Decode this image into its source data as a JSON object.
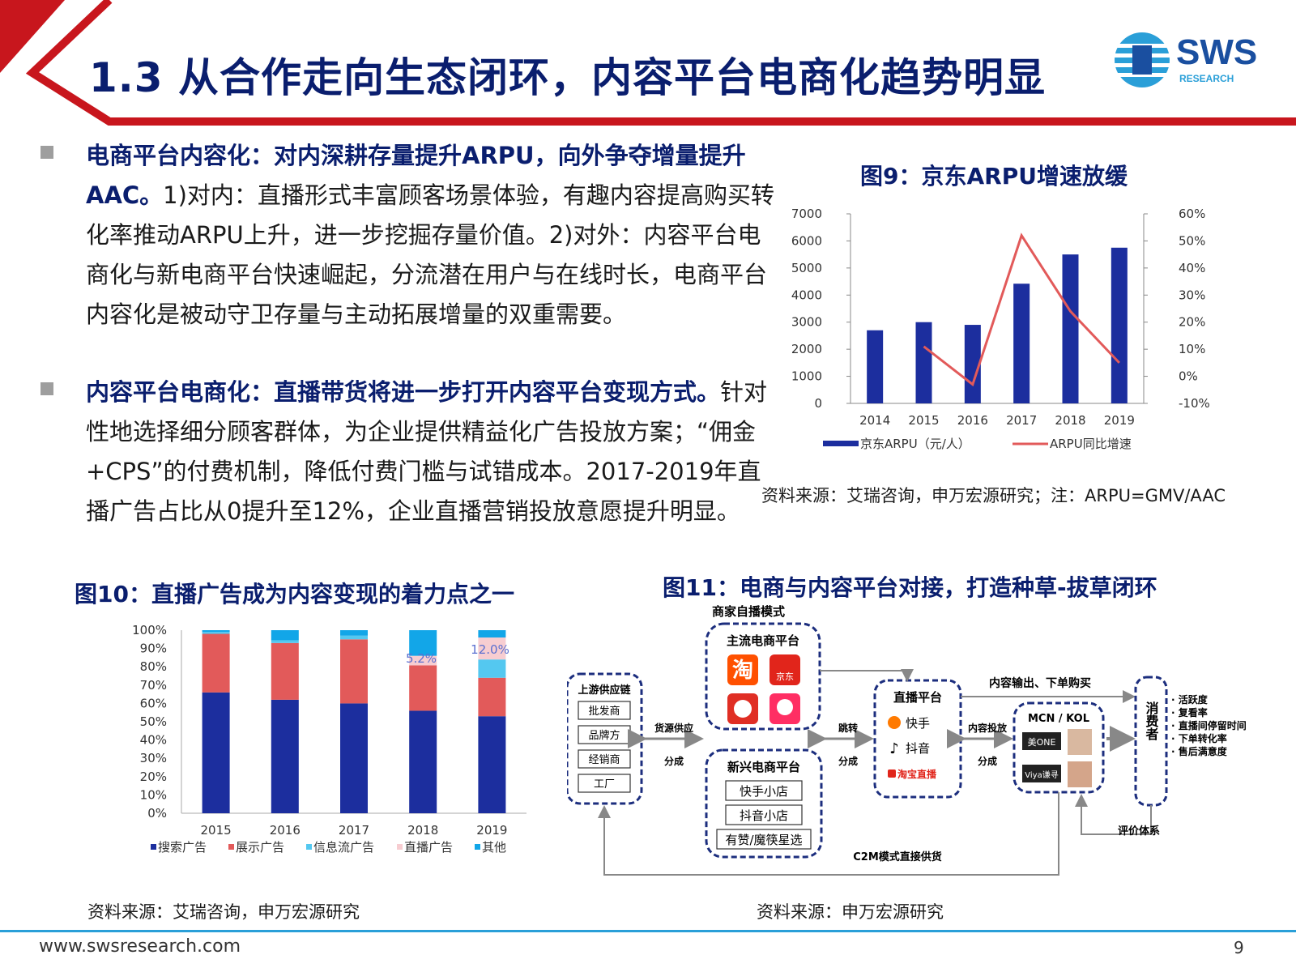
{
  "header": {
    "title": "1.3 从合作走向生态闭环，内容平台电商化趋势明显",
    "logo_text": "SWS",
    "logo_sub": "RESEARCH",
    "accent_red": "#c8161d",
    "accent_navy": "#0a1e6e"
  },
  "bullets": [
    {
      "bold": "电商平台内容化：对内深耕存量提升ARPU，向外争夺增量提升AAC。",
      "text": "1)对内：直播形式丰富顾客场景体验，有趣内容提高购买转化率推动ARPU上升，进一步挖掘存量价值。2)对外：内容平台电商化与新电商平台快速崛起，分流潜在用户与在线时长，电商平台内容化是被动守卫存量与主动拓展增量的双重需要。"
    },
    {
      "bold": "内容平台电商化：直播带货将进一步打开内容平台变现方式。",
      "text": "针对性地选择细分顾客群体，为企业提供精益化广告投放方案；“佣金+CPS”的付费机制，降低付费门槛与试错成本。2017-2019年直播广告占比从0提升至12%，企业直播营销投放意愿提升明显。"
    }
  ],
  "fig9": {
    "title": "图9：京东ARPU增速放缓",
    "source": "资料来源：艾瑞咨询，申万宏源研究；注：ARPU=GMV/AAC",
    "left_ticks": [
      "7000",
      "6000",
      "5000",
      "4000",
      "3000",
      "2000",
      "1000",
      "0"
    ],
    "right_ticks": [
      "60%",
      "50%",
      "40%",
      "30%",
      "20%",
      "10%",
      "0%",
      "-10%"
    ]
  },
  "fig10": {
    "title": "图10：直播广告成为内容变现的着力点之一",
    "source": "资料来源：艾瑞咨询，申万宏源研究",
    "y_ticks": [
      "100%",
      "90%",
      "80%",
      "70%",
      "60%",
      "50%",
      "40%",
      "30%",
      "20%",
      "10%",
      "0%"
    ],
    "labels": {
      "live_2018": "5.2%",
      "live_2019": "12.0%"
    }
  },
  "fig11": {
    "title": "图11：电商与内容平台对接，打造种草-拔草闭环",
    "source": "资料来源：申万宏源研究",
    "merchant_mode": "商家自播模式",
    "mainstream": "主流电商平台",
    "upstream": "上游供应链",
    "upstream_items": [
      "批发商",
      "品牌方",
      "经销商",
      "工厂"
    ],
    "supply": "货源供应",
    "share1": "分成",
    "emerging": "新兴电商平台",
    "emerging_items": [
      "快手小店",
      "抖音小店",
      "有赞/魔筷星选"
    ],
    "jump": "跳转",
    "share2": "分成",
    "live_platform": "直播平台",
    "live_items": [
      "快手",
      "抖音",
      "淘宝直播"
    ],
    "content_out": "内容输出、下单购买",
    "content_put": "内容投放",
    "share3": "分成",
    "mcn": "MCN / KOL",
    "consumer": "消费者",
    "metrics": [
      "· 活跃度",
      "· 复看率",
      "· 直播间停留时间",
      "· 下单转化率",
      "· 售后满意度"
    ],
    "eval": "评价体系",
    "c2m": "C2M模式直接供货",
    "taobao": "淘",
    "jd": "京东",
    "mcn_logo1": "美ONE",
    "mcn_logo2": "Viya谦寻"
  },
  "chart_data": [
    {
      "type": "bar+line",
      "title": "图9：京东ARPU增速放缓",
      "categories": [
        "2014",
        "2015",
        "2016",
        "2017",
        "2018",
        "2019"
      ],
      "series": [
        {
          "name": "京东ARPU（元/人）",
          "type": "bar",
          "axis": "left",
          "color": "#1c2e9e",
          "values": [
            2700,
            3000,
            2900,
            4420,
            5500,
            5750
          ]
        },
        {
          "name": "ARPU同比增速",
          "type": "line",
          "axis": "right",
          "color": "#e25a5a",
          "values": [
            null,
            11,
            -3,
            52,
            24,
            5
          ]
        }
      ],
      "ylim_left": [
        0,
        7000
      ],
      "ylim_right": [
        -10,
        60
      ],
      "legend": "bottom"
    },
    {
      "type": "stacked-bar",
      "title": "图10：直播广告成为内容变现的着力点之一",
      "categories": [
        "2015",
        "2016",
        "2017",
        "2018",
        "2019"
      ],
      "series": [
        {
          "name": "搜索广告",
          "color": "#1c2e9e",
          "values": [
            66,
            62,
            60,
            56,
            53
          ]
        },
        {
          "name": "展示广告",
          "color": "#e25a5a",
          "values": [
            32,
            31,
            35,
            24.8,
            21
          ]
        },
        {
          "name": "信息流广告",
          "color": "#54c8f0",
          "values": [
            1,
            1.5,
            2,
            0,
            10
          ]
        },
        {
          "name": "直播广告",
          "color": "#f7cdd1",
          "values": [
            0,
            0,
            0,
            5.2,
            12
          ]
        },
        {
          "name": "其他",
          "color": "#12a6e8",
          "values": [
            1,
            5.5,
            3,
            14,
            4
          ]
        }
      ],
      "ylim": [
        0,
        100
      ],
      "y_unit": "%",
      "legend": "bottom"
    }
  ]
}
